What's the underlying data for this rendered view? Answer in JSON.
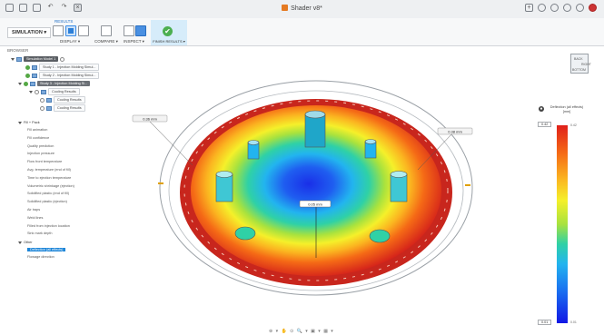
{
  "window": {
    "title": "Shader v8*",
    "accent": "#e57a22"
  },
  "ribbon": {
    "workspace": "SIMULATION ▾",
    "results_tab": "RESULTS",
    "display_label": "DISPLAY ▾",
    "compare_label": "COMPARE ▾",
    "inspect_label": "INSPECT ▾",
    "finish_label": "FINISH RESULTS ▾",
    "finish_color": "#4caf50"
  },
  "browser": {
    "title": "BROWSER",
    "model": "Simulation Model 1",
    "studies": [
      "Study 1 - Injection Molding Simul...",
      "Study 2 - Injection Molding Simul...",
      "Study 3 - Injection Molding Si..."
    ],
    "cooling_group": "Cooling Results",
    "cooling_items": [
      "Cooling Results",
      "Cooling Results"
    ],
    "fill_pack_header": "Fill + Pack",
    "fill_pack_items": [
      "Fill animation",
      "Fill confidence",
      "Quality prediction",
      "Injection pressure",
      "Flow front temperature",
      "Avg. temperature (end of fill)",
      "Time to ejection temperature",
      "Volumetric shrinkage (ejection)",
      "Solidified plastic (end of fill)",
      "Solidified plastic (ejection)",
      "Air traps",
      "Weld lines",
      "Filled from injection location",
      "Sink mark depth"
    ],
    "other_header": "Other",
    "other_items": [
      "Deflection (all effects)",
      "Flowage direction"
    ]
  },
  "viewport": {
    "measure_left": "0.36 mm",
    "measure_right": "0.38 mm",
    "measure_center": "0.05 mm"
  },
  "legend": {
    "title": "Deflection (all effects)",
    "unit": "[mm]",
    "max_value": "0.42",
    "min_value": "0.01",
    "max_label": "0.42",
    "min_label": "0.01",
    "colors": [
      "#e0201a",
      "#f56a16",
      "#fbb420",
      "#f5f02a",
      "#a8e23e",
      "#2fd1a6",
      "#22b4ef",
      "#1a6ef0",
      "#1217e5"
    ]
  },
  "viewcube": {
    "front": "BACK",
    "side": "RIGHT",
    "bottom": "BOTTOM"
  },
  "navbar": {
    "controls": "⊕ ▾ ✋ ⊙ 🔍 ▾  ▣ ▾  ▦ ▾"
  }
}
